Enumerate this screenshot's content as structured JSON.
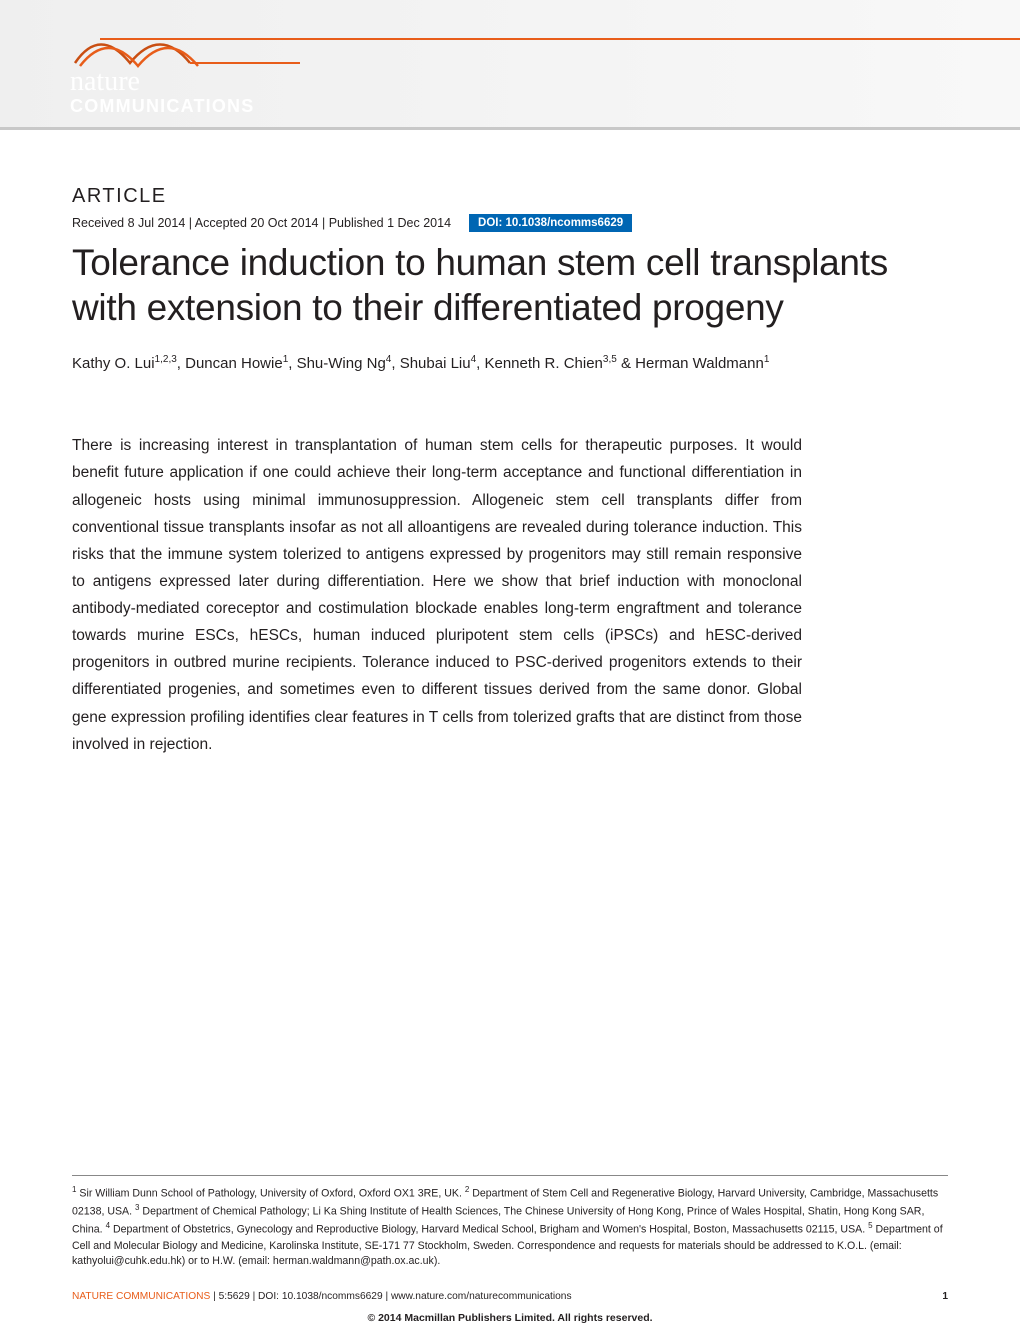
{
  "journal": {
    "logo_top": "nature",
    "logo_bottom": "COMMUNICATIONS",
    "logo_color": "#ffffff",
    "swoosh_color": "#e85d1a",
    "banner_bg": "#efefef"
  },
  "article": {
    "label": "ARTICLE",
    "received": "Received 8 Jul 2014",
    "accepted": "Accepted 20 Oct 2014",
    "published": "Published 1 Dec 2014",
    "doi_label": "DOI: 10.1038/ncomms6629",
    "doi_bg": "#0066b3",
    "title": "Tolerance induction to human stem cell transplants with extension to their differentiated progeny",
    "title_fontsize": 37,
    "authors_html": "Kathy O. Lui<sup>1,2,3</sup>, Duncan Howie<sup>1</sup>, Shu-Wing Ng<sup>4</sup>, Shubai Liu<sup>4</sup>, Kenneth R. Chien<sup>3,5</sup> & Herman Waldmann<sup>1</sup>",
    "abstract": "There is increasing interest in transplantation of human stem cells for therapeutic purposes. It would benefit future application if one could achieve their long-term acceptance and functional differentiation in allogeneic hosts using minimal immunosuppression. Allogeneic stem cell transplants differ from conventional tissue transplants insofar as not all alloantigens are revealed during tolerance induction. This risks that the immune system tolerized to antigens expressed by progenitors may still remain responsive to antigens expressed later during differentiation. Here we show that brief induction with monoclonal antibody-mediated coreceptor and costimulation blockade enables long-term engraftment and tolerance towards murine ESCs, hESCs, human induced pluripotent stem cells (iPSCs) and hESC-derived progenitors in outbred murine recipients. Tolerance induced to PSC-derived progenitors extends to their differentiated progenies, and sometimes even to different tissues derived from the same donor. Global gene expression profiling identifies clear features in T cells from tolerized grafts that are distinct from those involved in rejection.",
    "abstract_fontsize": 15.5
  },
  "affiliations_html": "<sup>1</sup> Sir William Dunn School of Pathology, University of Oxford, Oxford OX1 3RE, UK. <sup>2</sup> Department of Stem Cell and Regenerative Biology, Harvard University, Cambridge, Massachusetts 02138, USA. <sup>3</sup> Department of Chemical Pathology; Li Ka Shing Institute of Health Sciences, The Chinese University of Hong Kong, Prince of Wales Hospital, Shatin, Hong Kong SAR, China. <sup>4</sup> Department of Obstetrics, Gynecology and Reproductive Biology, Harvard Medical School, Brigham and Women's Hospital, Boston, Massachusetts 02115, USA. <sup>5</sup> Department of Cell and Molecular Biology and Medicine, Karolinska Institute, SE-171 77 Stockholm, Sweden. Correspondence and requests for materials should be addressed to K.O.L. (email: kathyolui@cuhk.edu.hk) or to H.W. (email: herman.waldmann@path.ox.ac.uk).",
  "footer": {
    "citation_journal": "NATURE COMMUNICATIONS",
    "citation_rest": " | 5:5629 | DOI: 10.1038/ncomms6629 | www.nature.com/naturecommunications",
    "page": "1",
    "copyright": "© 2014 Macmillan Publishers Limited. All rights reserved.",
    "journal_color": "#e85d1a"
  },
  "colors": {
    "text": "#231f20",
    "background": "#ffffff"
  }
}
